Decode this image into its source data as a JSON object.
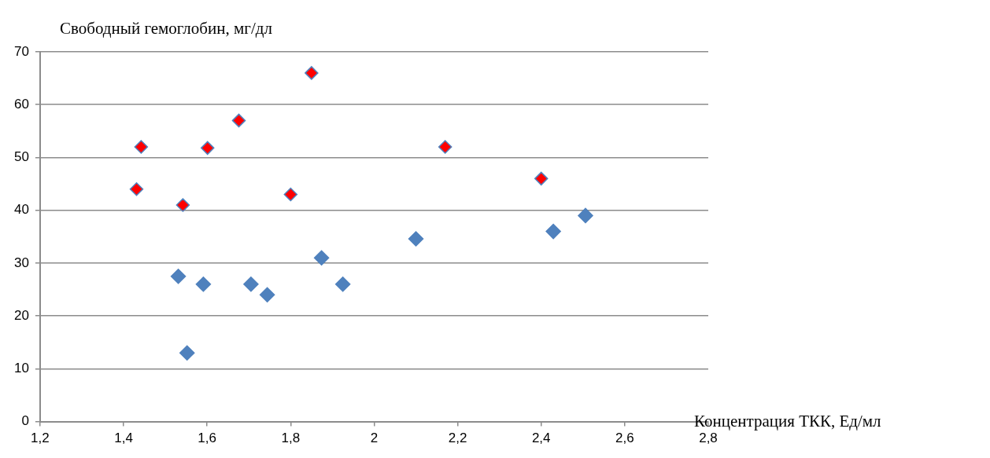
{
  "chart_data": {
    "type": "scatter",
    "ylabel": "Свободный гемоглобин, мг/дл",
    "xlabel": "Концентрация ТКК, Ед/мл",
    "series": [
      {
        "color": "#4f81bd",
        "x": [
          1.531,
          1.552,
          1.591,
          1.705,
          1.744,
          1.874,
          1.925,
          2.1,
          2.429,
          2.506
        ],
        "values": [
          27.5,
          13,
          26,
          26,
          24,
          31,
          26,
          34.6,
          36,
          39
        ]
      },
      {
        "color": "#ff0000",
        "x": [
          1.431,
          1.442,
          1.542,
          1.601,
          1.676,
          1.8,
          1.85,
          2.17,
          2.4
        ],
        "values": [
          44,
          52,
          41,
          51.8,
          57,
          43,
          66,
          52,
          46
        ]
      }
    ],
    "xlim": [
      1.2,
      2.8
    ],
    "xticks": [
      {
        "value": 1.2,
        "label": "1,2"
      },
      {
        "value": 1.4,
        "label": "1,4"
      },
      {
        "value": 1.6,
        "label": "1,6"
      },
      {
        "value": 1.8,
        "label": "1,8"
      },
      2,
      {
        "value": 2.2,
        "label": "2,2"
      },
      {
        "value": 2.4,
        "label": "2,4"
      },
      {
        "value": 2.6,
        "label": "2,6"
      },
      {
        "value": 2.8,
        "label": "2,8"
      }
    ],
    "ylim": [
      0,
      70
    ],
    "yticks": [
      0,
      10,
      20,
      30,
      40,
      50,
      60,
      70
    ],
    "grid": "y",
    "marker": "diamond"
  }
}
